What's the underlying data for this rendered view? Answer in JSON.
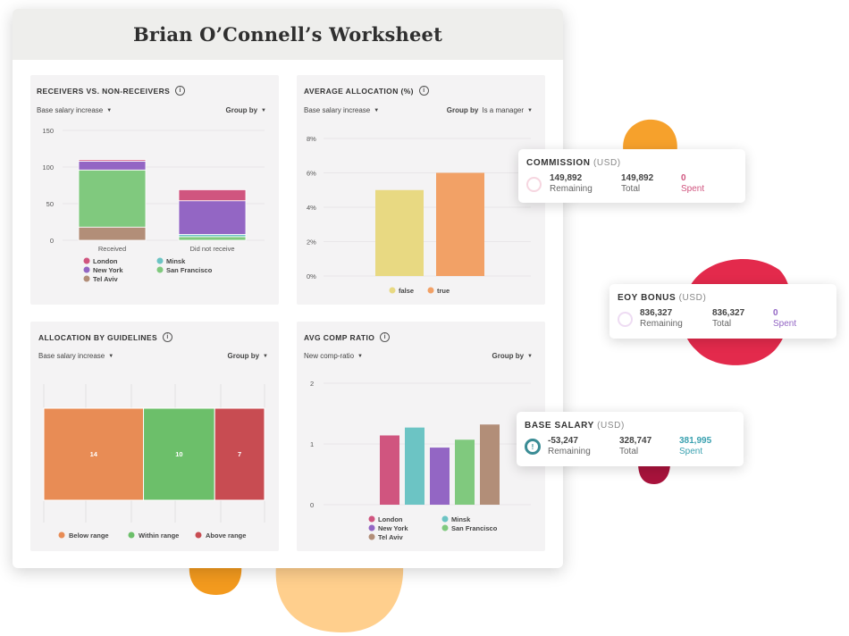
{
  "worksheet": {
    "title": "Brian O’Connell’s Worksheet"
  },
  "panels": {
    "receivers": {
      "title": "RECEIVERS VS. NON-RECEIVERS",
      "filter": "Base salary increase",
      "group_by": "Group by",
      "group_value": ""
    },
    "avg_allocation": {
      "title": "AVERAGE ALLOCATION (%)",
      "filter": "Base salary increase",
      "group_by": "Group by",
      "group_value": "Is a manager"
    },
    "guidelines": {
      "title": "ALLOCATION BY GUIDELINES",
      "filter": "Base salary increase",
      "group_by": "Group by",
      "group_value": ""
    },
    "comp_ratio": {
      "title": "AVG COMP RATIO",
      "filter": "New comp-ratio",
      "group_by": "Group by",
      "group_value": ""
    }
  },
  "colors": {
    "london": "#d0557f",
    "minsk": "#6cc4c4",
    "new_york": "#9366c4",
    "san_francisco": "#80c97e",
    "tel_aviv": "#b28e78",
    "false": "#e8d982",
    "true": "#f2a166",
    "below": "#e88c55",
    "within": "#6cbf6a",
    "above": "#c84c52"
  },
  "chart_data": [
    {
      "type": "bar",
      "stacked": true,
      "title": "RECEIVERS VS. NON-RECEIVERS",
      "categories": [
        "Received",
        "Did not receive"
      ],
      "ylim": [
        0,
        150
      ],
      "yticks": [
        0,
        50,
        100,
        150
      ],
      "series": [
        {
          "name": "Tel Aviv",
          "values": [
            18,
            0
          ]
        },
        {
          "name": "San Francisco",
          "values": [
            78,
            5
          ]
        },
        {
          "name": "Minsk",
          "values": [
            0,
            3
          ]
        },
        {
          "name": "New York",
          "values": [
            12,
            46
          ]
        },
        {
          "name": "London",
          "values": [
            2,
            15
          ]
        }
      ]
    },
    {
      "type": "bar",
      "title": "AVERAGE ALLOCATION (%)",
      "categories": [
        "false",
        "true"
      ],
      "values": [
        5,
        6
      ],
      "ylim": [
        0,
        8
      ],
      "yticks": [
        "0%",
        "2%",
        "4%",
        "6%",
        "8%"
      ]
    },
    {
      "type": "bar",
      "stacked": true,
      "horizontal": true,
      "title": "ALLOCATION BY GUIDELINES",
      "series": [
        {
          "name": "Below range",
          "value": 14
        },
        {
          "name": "Within range",
          "value": 10
        },
        {
          "name": "Above range",
          "value": 7
        }
      ]
    },
    {
      "type": "bar",
      "title": "AVG COMP RATIO",
      "categories": [
        "London",
        "Minsk",
        "New York",
        "San Francisco",
        "Tel Aviv"
      ],
      "values": [
        1.14,
        1.27,
        0.94,
        1.07,
        1.32
      ],
      "ylim": [
        0,
        2
      ],
      "yticks": [
        0,
        1,
        2
      ]
    }
  ],
  "budget_cards": [
    {
      "title": "COMMISSION",
      "unit": "(USD)",
      "remaining": "149,892",
      "remaining_label": "Remaining",
      "total": "149,892",
      "total_label": "Total",
      "spent": "0",
      "spent_label": "Spent",
      "spent_color": "#d0557f",
      "ring_color": "#f6d6e0"
    },
    {
      "title": "EOY BONUS",
      "unit": "(USD)",
      "remaining": "836,327",
      "remaining_label": "Remaining",
      "total": "836,327",
      "total_label": "Total",
      "spent": "0",
      "spent_label": "Spent",
      "spent_color": "#9366c4",
      "ring_color": "#eedcf3"
    },
    {
      "title": "BASE SALARY",
      "unit": "(USD)",
      "remaining": "-53,247",
      "remaining_label": "Remaining",
      "total": "328,747",
      "total_label": "Total",
      "spent": "381,995",
      "spent_label": "Spent",
      "spent_color": "#3aa1b0",
      "ring_color": "#3a8c95"
    }
  ]
}
